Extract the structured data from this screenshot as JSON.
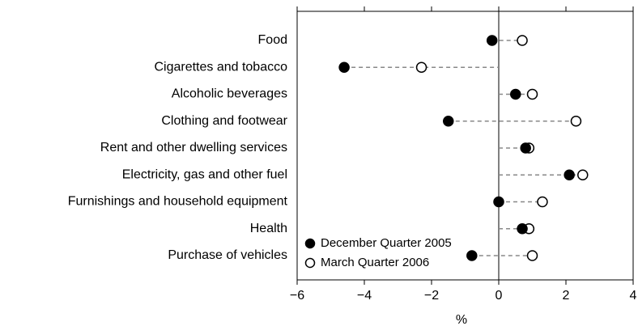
{
  "chart_data": {
    "type": "dot",
    "x_label": "%",
    "categories": [
      "Food",
      "Cigarettes and tobacco",
      "Alcoholic beverages",
      "Clothing and footwear",
      "Rent and other dwelling services",
      "Electricity, gas and other fuel",
      "Furnishings and household equipment",
      "Health",
      "Purchase of vehicles"
    ],
    "series": [
      {
        "name": "December Quarter 2005",
        "color": "#000000",
        "values": [
          -0.2,
          -4.6,
          0.5,
          -1.5,
          0.8,
          2.1,
          0.0,
          0.7,
          -0.8
        ]
      },
      {
        "name": "March Quarter 2006",
        "color": "#ffffff",
        "values": [
          0.7,
          -2.3,
          1.0,
          2.3,
          0.9,
          2.5,
          1.3,
          0.9,
          1.0
        ]
      }
    ],
    "xlim": [
      -6,
      4
    ],
    "xticks": [
      {
        "value": -6,
        "label": "−6"
      },
      {
        "value": -4,
        "label": "−4"
      },
      {
        "value": -2,
        "label": "−2"
      },
      0,
      2,
      4
    ],
    "legend": "lower left"
  }
}
